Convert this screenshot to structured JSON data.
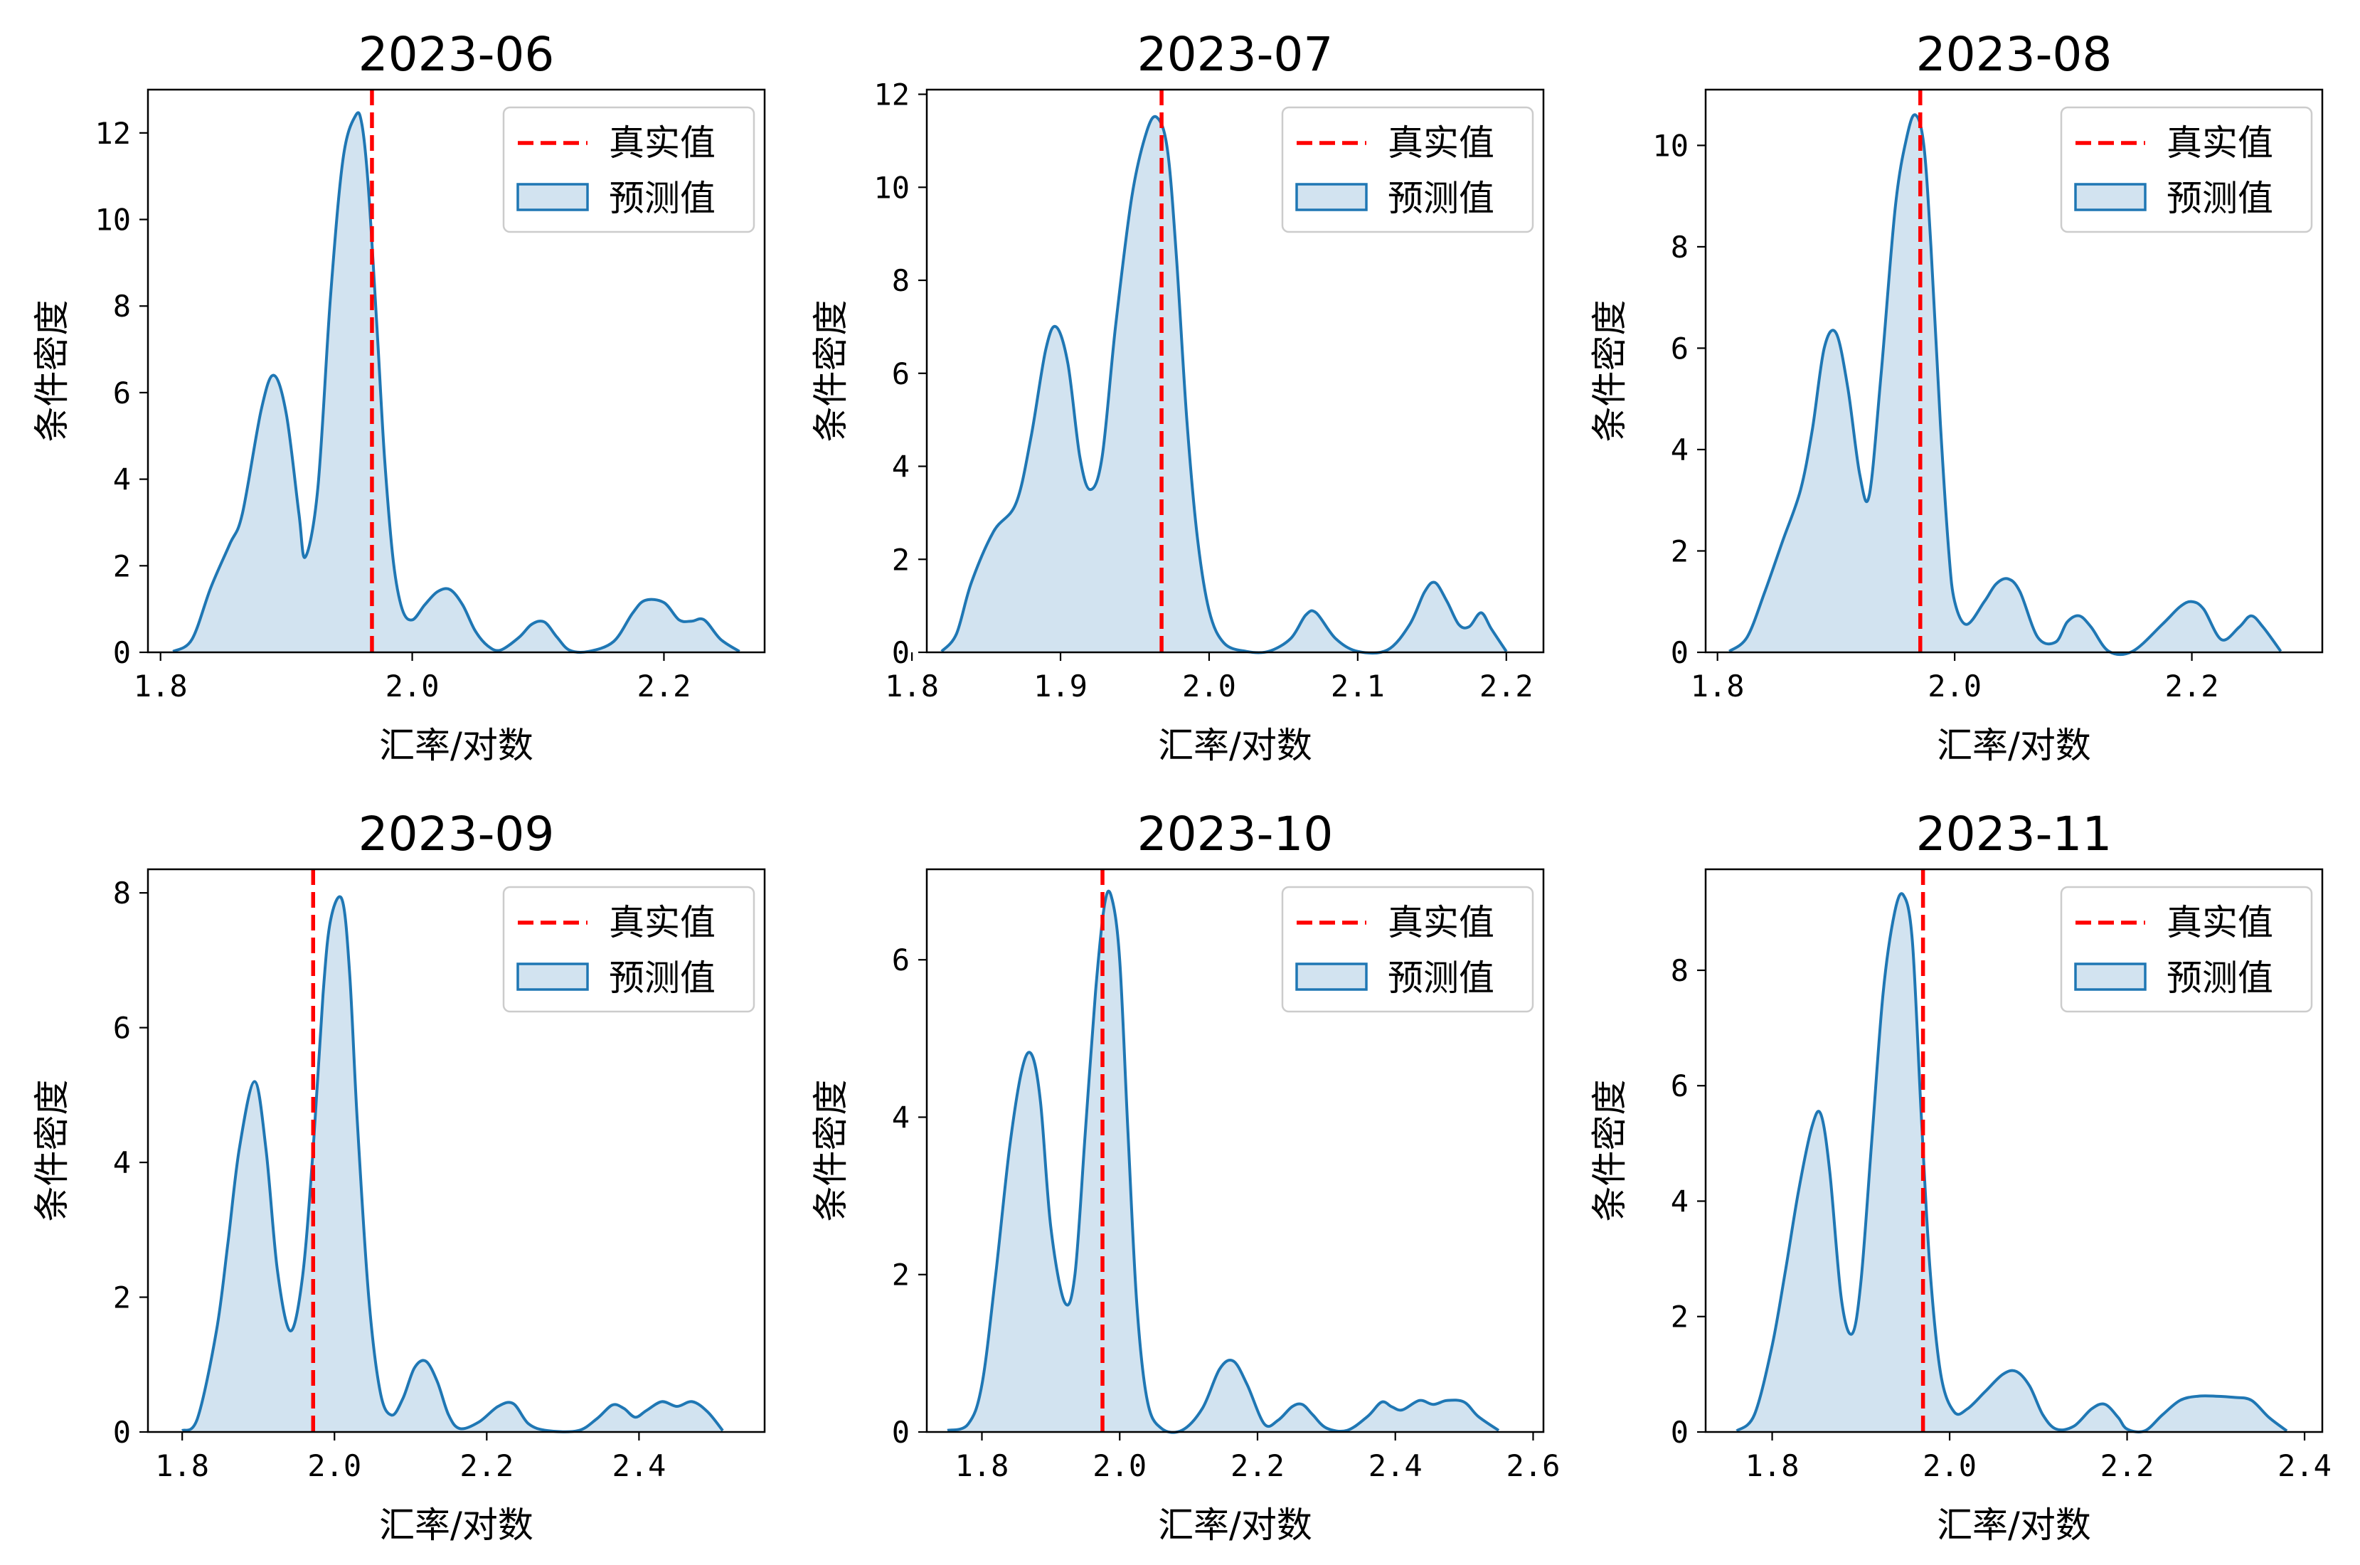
{
  "legend": {
    "true_label": "真实值",
    "pred_label": "预测值",
    "true_color": "#ff0000",
    "pred_line_color": "#1f77b4",
    "pred_fill_color": "#d2e3f0"
  },
  "chart_data": [
    {
      "type": "area",
      "title": "2023-06",
      "xlabel": "汇率/对数",
      "ylabel": "条件密度",
      "xlim": [
        1.79,
        2.28
      ],
      "ylim": [
        0,
        13.0
      ],
      "xticks": [
        1.8,
        2.0,
        2.2
      ],
      "xtick_labels": [
        "1.8",
        "2.0",
        "2.2"
      ],
      "yticks": [
        0,
        2,
        4,
        6,
        8,
        10,
        12
      ],
      "ytick_labels": [
        "0",
        "2",
        "4",
        "6",
        "8",
        "10",
        "12"
      ],
      "true_value": 1.968,
      "legend_position": "upper right",
      "density_x": [
        1.81,
        1.825,
        1.84,
        1.855,
        1.865,
        1.88,
        1.89,
        1.9,
        1.91,
        1.915,
        1.925,
        1.935,
        1.945,
        1.955,
        1.96,
        1.965,
        1.972,
        1.978,
        1.985,
        1.992,
        2.0,
        2.01,
        2.02,
        2.03,
        2.04,
        2.05,
        2.06,
        2.07,
        2.085,
        2.095,
        2.105,
        2.115,
        2.125,
        2.14,
        2.16,
        2.175,
        2.185,
        2.2,
        2.212,
        2.222,
        2.232,
        2.245,
        2.26
      ],
      "density_y": [
        0.02,
        0.3,
        1.5,
        2.5,
        3.2,
        5.6,
        6.4,
        5.5,
        3.2,
        2.2,
        3.8,
        8.2,
        11.4,
        12.4,
        12.2,
        10.8,
        7.5,
        4.5,
        2.1,
        1.0,
        0.75,
        1.1,
        1.4,
        1.45,
        1.1,
        0.5,
        0.15,
        0.05,
        0.35,
        0.65,
        0.7,
        0.35,
        0.05,
        0.02,
        0.25,
        0.9,
        1.2,
        1.15,
        0.75,
        0.72,
        0.75,
        0.3,
        0.02
      ]
    },
    {
      "type": "area",
      "title": "2023-07",
      "xlabel": "汇率/对数",
      "ylabel": "条件密度",
      "xlim": [
        1.81,
        2.225
      ],
      "ylim": [
        0,
        12.1
      ],
      "xticks": [
        1.8,
        1.9,
        2.0,
        2.1,
        2.2
      ],
      "xtick_labels": [
        "1.8",
        "1.9",
        "2.0",
        "2.1",
        "2.2"
      ],
      "yticks": [
        0,
        2,
        4,
        6,
        8,
        10,
        12
      ],
      "ytick_labels": [
        "0",
        "2",
        "4",
        "6",
        "8",
        "10",
        "12"
      ],
      "true_value": 1.968,
      "legend_position": "upper right",
      "density_x": [
        1.82,
        1.83,
        1.84,
        1.855,
        1.87,
        1.88,
        1.89,
        1.897,
        1.905,
        1.913,
        1.92,
        1.928,
        1.937,
        1.948,
        1.958,
        1.965,
        1.972,
        1.978,
        1.985,
        1.992,
        2.0,
        2.01,
        2.025,
        2.04,
        2.055,
        2.065,
        2.072,
        2.085,
        2.1,
        2.12,
        2.135,
        2.145,
        2.152,
        2.16,
        2.168,
        2.175,
        2.183,
        2.19,
        2.2
      ],
      "density_y": [
        0.02,
        0.4,
        1.5,
        2.6,
        3.2,
        4.6,
        6.5,
        7.0,
        6.2,
        4.2,
        3.5,
        4.2,
        7.0,
        9.8,
        11.2,
        11.5,
        10.8,
        8.5,
        5.0,
        2.5,
        0.9,
        0.2,
        0.02,
        0.02,
        0.3,
        0.8,
        0.85,
        0.3,
        0.02,
        0.05,
        0.6,
        1.3,
        1.5,
        1.1,
        0.6,
        0.55,
        0.85,
        0.5,
        0.02
      ]
    },
    {
      "type": "area",
      "title": "2023-08",
      "xlabel": "汇率/对数",
      "ylabel": "条件密度",
      "xlim": [
        1.79,
        2.31
      ],
      "ylim": [
        0,
        11.1
      ],
      "xticks": [
        1.8,
        2.0,
        2.2
      ],
      "xtick_labels": [
        "1.8",
        "2.0",
        "2.2"
      ],
      "yticks": [
        0,
        2,
        4,
        6,
        8,
        10
      ],
      "ytick_labels": [
        "0",
        "2",
        "4",
        "6",
        "8",
        "10"
      ],
      "true_value": 1.971,
      "legend_position": "upper right",
      "density_x": [
        1.81,
        1.825,
        1.84,
        1.855,
        1.87,
        1.88,
        1.89,
        1.9,
        1.91,
        1.92,
        1.928,
        1.938,
        1.95,
        1.96,
        1.967,
        1.974,
        1.98,
        1.988,
        1.995,
        2.0,
        2.01,
        2.025,
        2.035,
        2.045,
        2.055,
        2.07,
        2.085,
        2.095,
        2.105,
        2.115,
        2.13,
        2.15,
        2.175,
        2.19,
        2.2,
        2.21,
        2.225,
        2.24,
        2.25,
        2.26,
        2.275
      ],
      "density_y": [
        0.02,
        0.3,
        1.2,
        2.2,
        3.2,
        4.4,
        6.0,
        6.3,
        5.2,
        3.5,
        3.1,
        5.5,
        8.8,
        10.2,
        10.6,
        10.0,
        8.0,
        4.5,
        2.0,
        1.0,
        0.55,
        1.0,
        1.35,
        1.45,
        1.2,
        0.3,
        0.2,
        0.6,
        0.72,
        0.5,
        0.02,
        0.02,
        0.55,
        0.9,
        1.0,
        0.85,
        0.25,
        0.5,
        0.72,
        0.5,
        0.02
      ]
    },
    {
      "type": "area",
      "title": "2023-09",
      "xlabel": "汇率/对数",
      "ylabel": "条件密度",
      "xlim": [
        1.755,
        2.565
      ],
      "ylim": [
        0,
        8.35
      ],
      "xticks": [
        1.8,
        2.0,
        2.2,
        2.4
      ],
      "xtick_labels": [
        "1.8",
        "2.0",
        "2.2",
        "2.4"
      ],
      "yticks": [
        0,
        2,
        4,
        6,
        8
      ],
      "ytick_labels": [
        "0",
        "2",
        "4",
        "6",
        "8"
      ],
      "true_value": 1.972,
      "legend_position": "upper right",
      "density_x": [
        1.8,
        1.82,
        1.845,
        1.86,
        1.875,
        1.895,
        1.91,
        1.925,
        1.942,
        1.958,
        1.972,
        1.985,
        1.995,
        2.01,
        2.02,
        2.03,
        2.045,
        2.06,
        2.075,
        2.09,
        2.105,
        2.12,
        2.135,
        2.15,
        2.165,
        2.19,
        2.215,
        2.235,
        2.255,
        2.28,
        2.32,
        2.345,
        2.365,
        2.38,
        2.395,
        2.41,
        2.43,
        2.45,
        2.47,
        2.49,
        2.51
      ],
      "density_y": [
        0.02,
        0.2,
        1.5,
        2.8,
        4.2,
        5.2,
        4.2,
        2.4,
        1.5,
        2.3,
        4.2,
        6.5,
        7.6,
        7.9,
        6.8,
        4.6,
        2.0,
        0.6,
        0.25,
        0.5,
        0.95,
        1.05,
        0.75,
        0.25,
        0.05,
        0.15,
        0.38,
        0.42,
        0.12,
        0.02,
        0.02,
        0.2,
        0.4,
        0.35,
        0.22,
        0.32,
        0.45,
        0.38,
        0.45,
        0.3,
        0.02
      ]
    },
    {
      "type": "area",
      "title": "2023-10",
      "xlabel": "汇率/对数",
      "ylabel": "条件密度",
      "xlim": [
        1.72,
        2.615
      ],
      "ylim": [
        0,
        7.15
      ],
      "xticks": [
        1.8,
        2.0,
        2.2,
        2.4,
        2.6
      ],
      "xtick_labels": [
        "1.8",
        "2.0",
        "2.2",
        "2.4",
        "2.6"
      ],
      "yticks": [
        0,
        2,
        4,
        6
      ],
      "ytick_labels": [
        "0",
        "2",
        "4",
        "6"
      ],
      "true_value": 1.975,
      "legend_position": "upper right",
      "density_x": [
        1.75,
        1.78,
        1.8,
        1.82,
        1.84,
        1.858,
        1.872,
        1.885,
        1.9,
        1.92,
        1.935,
        1.95,
        1.965,
        1.978,
        1.988,
        2.0,
        2.012,
        2.025,
        2.04,
        2.06,
        2.09,
        2.12,
        2.145,
        2.165,
        2.185,
        2.21,
        2.23,
        2.25,
        2.265,
        2.28,
        2.3,
        2.33,
        2.36,
        2.38,
        2.395,
        2.41,
        2.435,
        2.455,
        2.475,
        2.5,
        2.52,
        2.55
      ],
      "density_y": [
        0.02,
        0.1,
        0.6,
        2.0,
        3.6,
        4.6,
        4.8,
        4.2,
        2.6,
        1.65,
        2.0,
        3.8,
        5.6,
        6.7,
        6.8,
        6.0,
        3.8,
        1.6,
        0.4,
        0.05,
        0.02,
        0.3,
        0.8,
        0.9,
        0.6,
        0.1,
        0.15,
        0.32,
        0.35,
        0.22,
        0.05,
        0.02,
        0.2,
        0.38,
        0.32,
        0.28,
        0.4,
        0.35,
        0.4,
        0.38,
        0.2,
        0.02
      ]
    },
    {
      "type": "area",
      "title": "2023-11",
      "xlabel": "汇率/对数",
      "ylabel": "条件密度",
      "xlim": [
        1.725,
        2.42
      ],
      "ylim": [
        0,
        9.75
      ],
      "xticks": [
        1.8,
        2.0,
        2.2,
        2.4
      ],
      "xtick_labels": [
        "1.8",
        "2.0",
        "2.2",
        "2.4"
      ],
      "yticks": [
        0,
        2,
        4,
        6,
        8
      ],
      "ytick_labels": [
        "0",
        "2",
        "4",
        "6",
        "8"
      ],
      "true_value": 1.97,
      "legend_position": "upper right",
      "density_x": [
        1.76,
        1.78,
        1.8,
        1.815,
        1.83,
        1.845,
        1.855,
        1.865,
        1.878,
        1.89,
        1.9,
        1.912,
        1.925,
        1.938,
        1.948,
        1.958,
        1.968,
        1.978,
        1.99,
        2.005,
        2.02,
        2.04,
        2.06,
        2.075,
        2.09,
        2.105,
        2.12,
        2.14,
        2.16,
        2.175,
        2.19,
        2.2,
        2.22,
        2.24,
        2.26,
        2.28,
        2.3,
        2.32,
        2.34,
        2.36,
        2.38
      ],
      "density_y": [
        0.02,
        0.3,
        1.5,
        2.8,
        4.2,
        5.3,
        5.5,
        4.5,
        2.3,
        1.7,
        2.6,
        5.0,
        7.6,
        9.0,
        9.3,
        8.5,
        5.5,
        2.8,
        1.0,
        0.35,
        0.4,
        0.7,
        1.0,
        1.05,
        0.8,
        0.3,
        0.05,
        0.1,
        0.4,
        0.48,
        0.25,
        0.05,
        0.02,
        0.3,
        0.55,
        0.62,
        0.62,
        0.6,
        0.55,
        0.25,
        0.02
      ]
    }
  ]
}
